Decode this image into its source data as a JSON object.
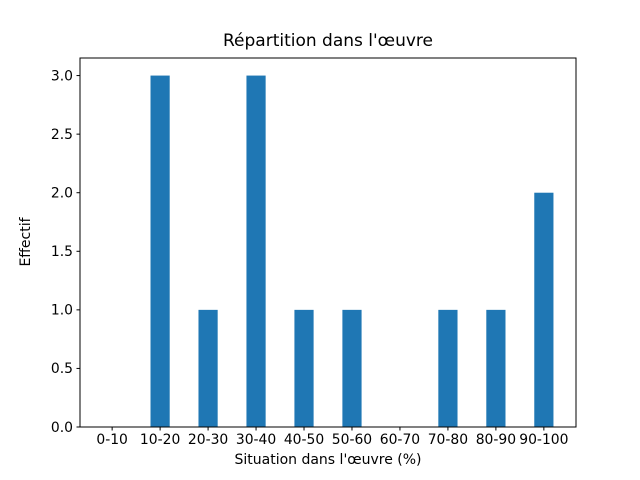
{
  "chart_data": {
    "type": "bar",
    "title": "Répartition dans l'œuvre",
    "xlabel": "Situation dans l'œuvre (%)",
    "ylabel": "Effectif",
    "categories": [
      "0-10",
      "10-20",
      "20-30",
      "30-40",
      "40-50",
      "50-60",
      "60-70",
      "70-80",
      "80-90",
      "90-100"
    ],
    "values": [
      0,
      3,
      1,
      3,
      1,
      1,
      0,
      1,
      1,
      2
    ],
    "ytick_labels": [
      "0.0",
      "0.5",
      "1.0",
      "1.5",
      "2.0",
      "2.5",
      "3.0"
    ],
    "ytick_values": [
      0,
      0.5,
      1.0,
      1.5,
      2.0,
      2.5,
      3.0
    ],
    "ylim": [
      0,
      3.15
    ],
    "bar_width_fraction": 0.4,
    "grid": false,
    "legend_position": "none",
    "colors": {
      "bar": "#1f77b4",
      "axis": "#000000",
      "text": "#000000",
      "background": "#ffffff"
    }
  }
}
